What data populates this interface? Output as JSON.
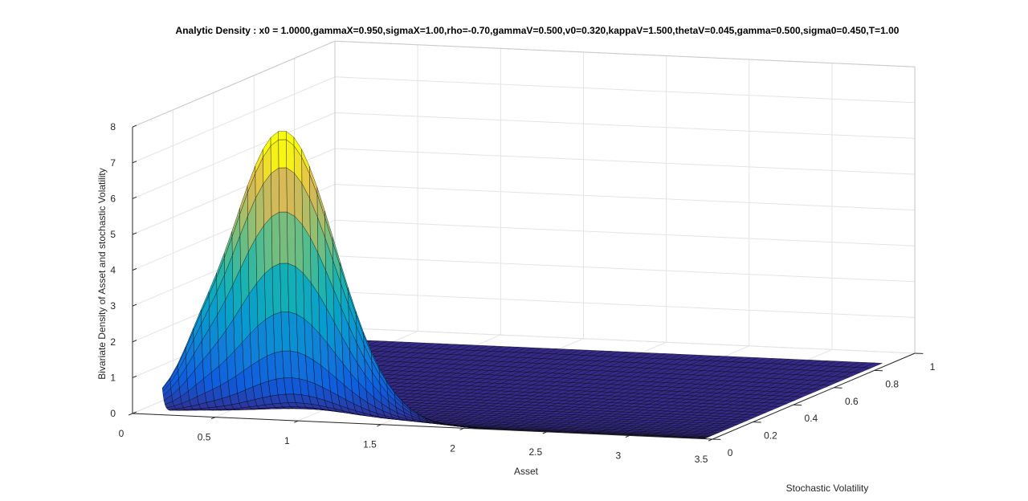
{
  "chart_data": {
    "type": "surface",
    "title": "Analytic Density : x0 = 1.0000,gammaX=0.950,sigmaX=1.00,rho=-0.70,gammaV=0.500,v0=0.320,kappaV=1.500,thetaV=0.045,gamma=0.500,sigma0=0.450,T=1.00",
    "xlabel": "Asset",
    "ylabel": "Stochastic Volatility",
    "zlabel": "Bivariate Density of Asset and stochastic Volatility",
    "xlim": [
      0,
      3.5
    ],
    "ylim": [
      0,
      1
    ],
    "zlim": [
      0,
      8
    ],
    "x_ticks": [
      "0",
      "0.5",
      "1",
      "1.5",
      "2",
      "2.5",
      "3",
      "3.5"
    ],
    "y_ticks": [
      "0",
      "0.2",
      "0.4",
      "0.6",
      "0.8",
      "1"
    ],
    "z_ticks": [
      "0",
      "1",
      "2",
      "3",
      "4",
      "5",
      "6",
      "7",
      "8"
    ],
    "surface_x_range": [
      0.18,
      3.45
    ],
    "surface_y_range": [
      0.0,
      0.88
    ],
    "peak": {
      "x": 0.9,
      "y": 0.0,
      "z": 7.5
    },
    "colormap": "parula",
    "grid": true
  }
}
